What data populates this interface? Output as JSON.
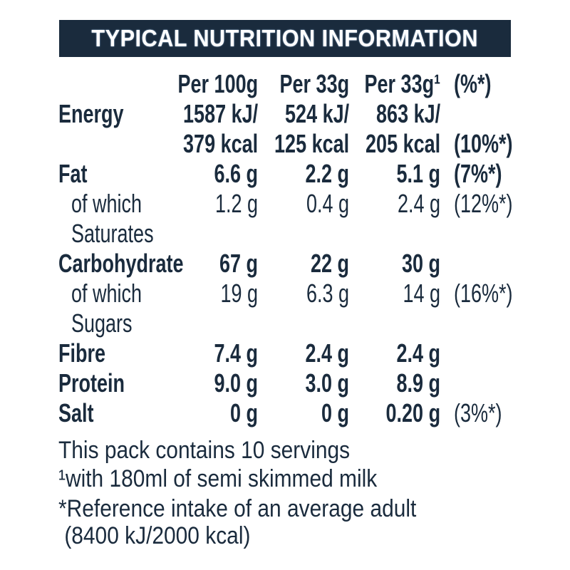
{
  "title": "TYPICAL NUTRITION INFORMATION",
  "rows": [
    {
      "label": "",
      "c1": "Per 100g",
      "c2": "Per 33g",
      "c3": "Per 33g¹",
      "pct": "(%*)",
      "bold": true
    },
    {
      "label": "Energy",
      "c1": "1587 kJ/",
      "c2": "524 kJ/",
      "c3": "863 kJ/",
      "pct": "",
      "bold": true
    },
    {
      "label": "",
      "c1": "379 kcal",
      "c2": "125 kcal",
      "c3": "205 kcal",
      "pct": "(10%*)",
      "bold": true
    },
    {
      "label": "Fat",
      "c1": "6.6 g",
      "c2": "2.2 g",
      "c3": "5.1 g",
      "pct": "(7%*)",
      "bold": true
    },
    {
      "label": "of which",
      "c1": "1.2 g",
      "c2": "0.4 g",
      "c3": "2.4 g",
      "pct": "(12%*)",
      "bold": false,
      "indent": true
    },
    {
      "label": "Saturates",
      "c1": "",
      "c2": "",
      "c3": "",
      "pct": "",
      "bold": false,
      "indent": true
    },
    {
      "label": "Carbohydrate",
      "c1": "67 g",
      "c2": "22 g",
      "c3": "30 g",
      "pct": "",
      "bold": true
    },
    {
      "label": "of which",
      "c1": "19 g",
      "c2": "6.3 g",
      "c3": "14 g",
      "pct": "(16%*)",
      "bold": false,
      "indent": true
    },
    {
      "label": "Sugars",
      "c1": "",
      "c2": "",
      "c3": "",
      "pct": "",
      "bold": false,
      "indent": true
    },
    {
      "label": "Fibre",
      "c1": "7.4 g",
      "c2": "2.4 g",
      "c3": "2.4 g",
      "pct": "",
      "bold": true
    },
    {
      "label": "Protein",
      "c1": "9.0 g",
      "c2": "3.0 g",
      "c3": "8.9 g",
      "pct": "",
      "bold": true
    },
    {
      "label": "Salt",
      "c1": "0 g",
      "c2": "0 g",
      "c3": "0.20 g",
      "pct": "(3%*)",
      "bold": true,
      "pct_regular": true
    }
  ],
  "footer": [
    "This pack contains 10 servings",
    "¹with 180ml of semi skimmed milk",
    "*Reference intake of an average adult",
    " (8400 kJ/2000 kcal)"
  ],
  "colors": {
    "navy": "#1a2b3d"
  }
}
